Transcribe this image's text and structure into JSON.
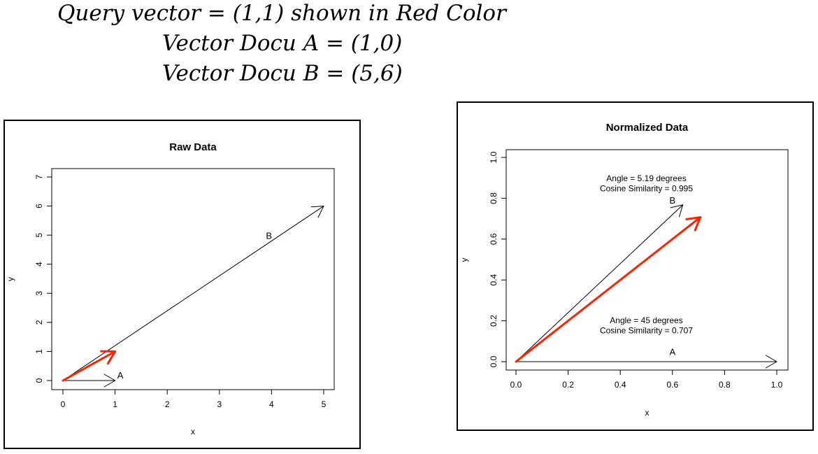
{
  "equations": {
    "line1": "Query vector = (1,1) shown in Red Color",
    "line2": "Vector Docu A = (1,0)",
    "line3": "Vector Docu B = (5,6)"
  },
  "colors": {
    "query": "#ff2200",
    "doc": "#000000",
    "frame": "#000000"
  },
  "chart_data": [
    {
      "type": "line",
      "title": "Raw Data",
      "xlabel": "x",
      "ylabel": "y",
      "xlim": [
        0,
        5
      ],
      "ylim": [
        0,
        7
      ],
      "xticks": [
        0,
        1,
        2,
        3,
        4,
        5
      ],
      "yticks": [
        0,
        1,
        2,
        3,
        4,
        5,
        6,
        7
      ],
      "xtick_labels": [
        "0",
        "1",
        "2",
        "3",
        "4",
        "5"
      ],
      "ytick_labels": [
        "0",
        "1",
        "2",
        "3",
        "4",
        "5",
        "6",
        "7"
      ],
      "grid": false,
      "series": [
        {
          "name": "A",
          "x": [
            0,
            1
          ],
          "y": [
            0,
            0
          ],
          "color": "#000000",
          "label_at": [
            1.1,
            0.15
          ]
        },
        {
          "name": "B",
          "x": [
            0,
            5
          ],
          "y": [
            0,
            6
          ],
          "color": "#000000",
          "label_at": [
            3.95,
            4.95
          ]
        },
        {
          "x": [
            0,
            1
          ],
          "y": [
            0,
            1
          ],
          "color": "#ff2200"
        }
      ],
      "annotations": []
    },
    {
      "type": "line",
      "title": "Normalized Data",
      "xlabel": "x",
      "ylabel": "y",
      "xlim": [
        0,
        1
      ],
      "ylim": [
        0,
        1
      ],
      "xticks": [
        0,
        0.2,
        0.4,
        0.6,
        0.8,
        1.0
      ],
      "yticks": [
        0,
        0.2,
        0.4,
        0.6,
        0.8,
        1.0
      ],
      "xtick_labels": [
        "0.0",
        "0.2",
        "0.4",
        "0.6",
        "0.8",
        "1.0"
      ],
      "ytick_labels": [
        "0.0",
        "0.2",
        "0.4",
        "0.6",
        "0.8",
        "1.0"
      ],
      "grid": false,
      "series": [
        {
          "name": "A",
          "x": [
            0,
            1
          ],
          "y": [
            0,
            0
          ],
          "color": "#000000",
          "label_at": [
            0.6,
            0.045
          ]
        },
        {
          "name": "B",
          "x": [
            0,
            0.64
          ],
          "y": [
            0,
            0.768
          ],
          "color": "#000000",
          "label_at": [
            0.6,
            0.785
          ]
        },
        {
          "x": [
            0,
            0.707
          ],
          "y": [
            0,
            0.707
          ],
          "color": "#ff2200"
        }
      ],
      "annotations": [
        {
          "text": "Angle = 5.19 degrees",
          "x": 0.5,
          "y": 0.895
        },
        {
          "text": "Cosine Similarity = 0.995",
          "x": 0.5,
          "y": 0.845
        },
        {
          "text": "Angle = 45 degrees",
          "x": 0.5,
          "y": 0.2
        },
        {
          "text": "Cosine Similarity = 0.707",
          "x": 0.5,
          "y": 0.15
        }
      ]
    }
  ]
}
